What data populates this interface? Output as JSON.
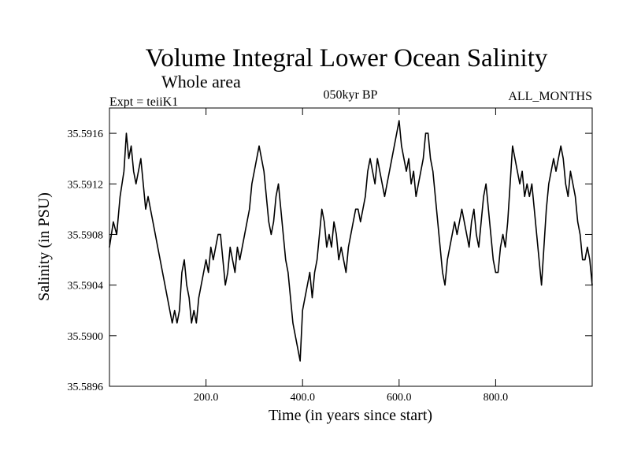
{
  "chart_data": {
    "type": "line",
    "title": "Volume Integral Lower Ocean Salinity",
    "subtitle": "Whole area",
    "header_left": "Expt = teiiK1",
    "header_center": "050kyr BP",
    "header_right": "ALL_MONTHS",
    "xlabel": "Time (in years since start)",
    "ylabel": "Salinity (in PSU)",
    "xlim": [
      0,
      1000
    ],
    "ylim": [
      35.5896,
      35.5918
    ],
    "xticks": [
      200,
      400,
      600,
      800
    ],
    "xtick_labels": [
      "200.0",
      "400.0",
      "600.0",
      "800.0"
    ],
    "yticks": [
      35.5896,
      35.59,
      35.5904,
      35.5908,
      35.5912,
      35.5916
    ],
    "ytick_labels": [
      "35.5896",
      "35.5900",
      "35.5904",
      "35.5908",
      "35.5912",
      "35.5916"
    ],
    "grid": false,
    "line_color": "#000000",
    "series": [
      {
        "x": [
          0,
          8,
          15,
          22,
          30,
          35,
          40,
          45,
          50,
          55,
          60,
          65,
          70,
          75,
          80,
          85,
          90,
          95,
          100,
          105,
          110,
          115,
          120,
          125,
          130,
          135,
          140,
          145,
          150,
          155,
          160,
          165,
          170,
          175,
          180,
          185,
          190,
          195,
          200,
          205,
          210,
          215,
          220,
          225,
          230,
          235,
          240,
          245,
          250,
          255,
          260,
          265,
          270,
          275,
          280,
          285,
          290,
          295,
          300,
          305,
          310,
          315,
          320,
          325,
          330,
          335,
          340,
          345,
          350,
          355,
          360,
          365,
          370,
          375,
          380,
          385,
          390,
          395,
          400,
          405,
          410,
          415,
          420,
          425,
          430,
          435,
          440,
          445,
          450,
          455,
          460,
          465,
          470,
          475,
          480,
          485,
          490,
          495,
          500,
          505,
          510,
          515,
          520,
          525,
          530,
          535,
          540,
          545,
          550,
          555,
          560,
          565,
          570,
          575,
          580,
          585,
          590,
          595,
          600,
          605,
          610,
          615,
          620,
          625,
          630,
          635,
          640,
          645,
          650,
          655,
          660,
          665,
          670,
          675,
          680,
          685,
          690,
          695,
          700,
          705,
          710,
          715,
          720,
          725,
          730,
          735,
          740,
          745,
          750,
          755,
          760,
          765,
          770,
          775,
          780,
          785,
          790,
          795,
          800,
          805,
          810,
          815,
          820,
          825,
          830,
          835,
          840,
          845,
          850,
          855,
          860,
          865,
          870,
          875,
          880,
          885,
          890,
          895,
          900,
          905,
          910,
          915,
          920,
          925,
          930,
          935,
          940,
          945,
          950,
          955,
          960,
          965,
          970,
          975,
          980,
          985,
          990,
          995,
          1000
        ],
        "y": [
          35.5907,
          35.5909,
          35.5908,
          35.5911,
          35.5913,
          35.5916,
          35.5914,
          35.5915,
          35.5913,
          35.5912,
          35.5913,
          35.5914,
          35.5912,
          35.591,
          35.5911,
          35.591,
          35.5909,
          35.5908,
          35.5907,
          35.5906,
          35.5905,
          35.5904,
          35.5903,
          35.5902,
          35.5901,
          35.5902,
          35.5901,
          35.5902,
          35.5905,
          35.5906,
          35.5904,
          35.5903,
          35.5901,
          35.5902,
          35.5901,
          35.5903,
          35.5904,
          35.5905,
          35.5906,
          35.5905,
          35.5907,
          35.5906,
          35.5907,
          35.5908,
          35.5908,
          35.5906,
          35.5904,
          35.5905,
          35.5907,
          35.5906,
          35.5905,
          35.5907,
          35.5906,
          35.5907,
          35.5908,
          35.5909,
          35.591,
          35.5912,
          35.5913,
          35.5914,
          35.5915,
          35.5914,
          35.5913,
          35.5911,
          35.5909,
          35.5908,
          35.5909,
          35.5911,
          35.5912,
          35.591,
          35.5908,
          35.5906,
          35.5905,
          35.5903,
          35.5901,
          35.59,
          35.5899,
          35.5898,
          35.5902,
          35.5903,
          35.5904,
          35.5905,
          35.5903,
          35.5905,
          35.5906,
          35.5908,
          35.591,
          35.5909,
          35.5907,
          35.5908,
          35.5907,
          35.5909,
          35.5908,
          35.5906,
          35.5907,
          35.5906,
          35.5905,
          35.5907,
          35.5908,
          35.5909,
          35.591,
          35.591,
          35.5909,
          35.591,
          35.5911,
          35.5913,
          35.5914,
          35.5913,
          35.5912,
          35.5914,
          35.5913,
          35.5912,
          35.5911,
          35.5912,
          35.5913,
          35.5914,
          35.5915,
          35.5916,
          35.5917,
          35.5915,
          35.5914,
          35.5913,
          35.5914,
          35.5912,
          35.5913,
          35.5911,
          35.5912,
          35.5913,
          35.5914,
          35.5916,
          35.5916,
          35.5914,
          35.5913,
          35.5911,
          35.5909,
          35.5907,
          35.5905,
          35.5904,
          35.5906,
          35.5907,
          35.5908,
          35.5909,
          35.5908,
          35.5909,
          35.591,
          35.5909,
          35.5908,
          35.5907,
          35.5909,
          35.591,
          35.5908,
          35.5907,
          35.5909,
          35.5911,
          35.5912,
          35.591,
          35.5908,
          35.5906,
          35.5905,
          35.5905,
          35.5907,
          35.5908,
          35.5907,
          35.5909,
          35.5912,
          35.5915,
          35.5914,
          35.5913,
          35.5912,
          35.5913,
          35.5911,
          35.5912,
          35.5911,
          35.5912,
          35.591,
          35.5908,
          35.5906,
          35.5904,
          35.5907,
          35.591,
          35.5912,
          35.5913,
          35.5914,
          35.5913,
          35.5914,
          35.5915,
          35.5914,
          35.5912,
          35.5911,
          35.5913,
          35.5912,
          35.5911,
          35.5909,
          35.5908,
          35.5906,
          35.5906,
          35.5907,
          35.5906,
          35.5904
        ]
      }
    ]
  }
}
